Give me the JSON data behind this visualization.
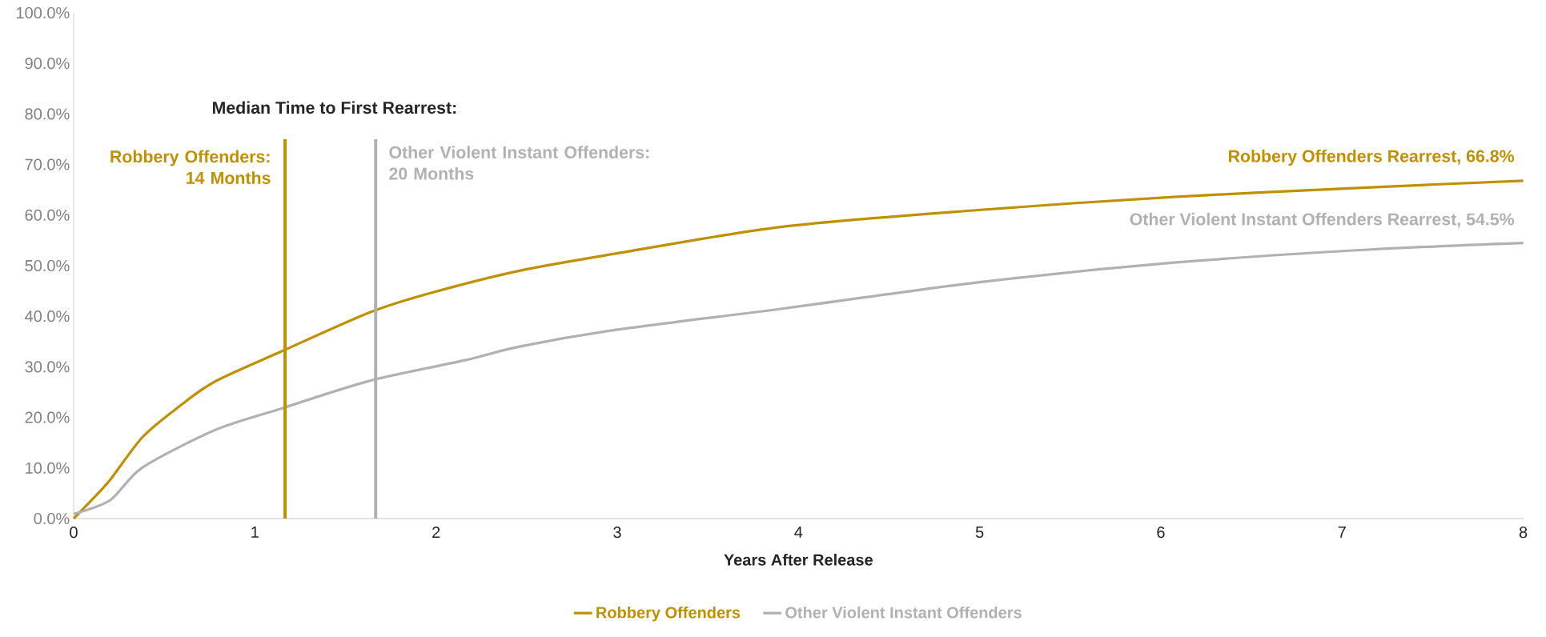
{
  "chart_data": {
    "type": "line",
    "xlabel": "Years After Release",
    "xlim": [
      0,
      8
    ],
    "xticks": [
      0,
      1,
      2,
      3,
      4,
      5,
      6,
      7,
      8
    ],
    "ylim": [
      0,
      100
    ],
    "yticks": [
      {
        "value": 0,
        "label": "0.0%"
      },
      {
        "value": 10,
        "label": "10.0%"
      },
      {
        "value": 20,
        "label": "20.0%"
      },
      {
        "value": 30,
        "label": "30.0%"
      },
      {
        "value": 40,
        "label": "40.0%"
      },
      {
        "value": 50,
        "label": "50.0%"
      },
      {
        "value": 60,
        "label": "60.0%"
      },
      {
        "value": 70,
        "label": "70.0%"
      },
      {
        "value": 80,
        "label": "80.0%"
      },
      {
        "value": 90,
        "label": "90.0%"
      },
      {
        "value": 100,
        "label": "100.0%"
      }
    ],
    "series": [
      {
        "name": "Robbery Offenders",
        "color": "#bf9000",
        "x": [
          0,
          0.1,
          0.2,
          0.38,
          0.58,
          0.78,
          1.15,
          1.63,
          1.96,
          2.46,
          3.01,
          3.91,
          4.99,
          6.07,
          7.16,
          8
        ],
        "values": [
          0,
          3.7,
          7.6,
          16.1,
          22.1,
          27.1,
          33.1,
          40.7,
          44.5,
          49.0,
          52.5,
          57.7,
          61.0,
          63.6,
          65.5,
          66.8
        ]
      },
      {
        "name": "Other Violent Instant Offenders",
        "color": "#b1b1b5",
        "x": [
          0,
          0.2,
          0.38,
          0.78,
          1.15,
          1.63,
          2.16,
          2.46,
          3.01,
          3.91,
          4.99,
          6.07,
          7.16,
          8
        ],
        "values": [
          0.9,
          3.6,
          10.1,
          17.5,
          21.8,
          27.2,
          31.3,
          34.0,
          37.4,
          41.5,
          46.7,
          50.6,
          53.2,
          54.5
        ]
      }
    ],
    "ref_lines": [
      {
        "axis": "x",
        "value": 1.1667,
        "color": "#bf9000"
      },
      {
        "axis": "x",
        "value": 1.6667,
        "color": "#b1b1b5"
      }
    ],
    "annotations": [
      "Median Time to First Rearrest:",
      "Robbery Offenders: 14 Months",
      "Other Violent Instant Offenders: 20 Months",
      {
        "text": "Robbery Offenders Rearrest, 66.8%",
        "x": 8,
        "y": 66.8
      },
      {
        "text": "Other Violent Instant Offenders Rearrest, 54.5%",
        "x": 8,
        "y": 54.5
      }
    ],
    "legend": "bottom",
    "grid": false,
    "marker": "none",
    "line_style": "solid"
  }
}
